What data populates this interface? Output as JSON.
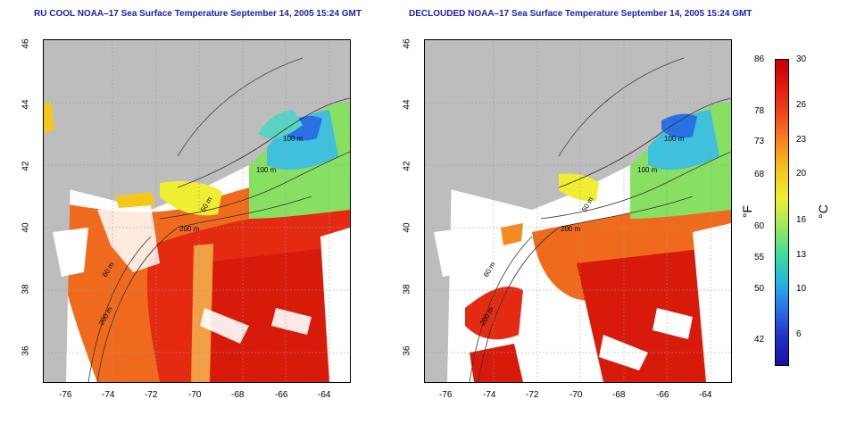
{
  "panels": [
    {
      "title": "RU COOL NOAA–17 Sea Surface Temperature September 14, 2005 15:24 GMT",
      "contour_labels": [
        "100 m",
        "100 m",
        "50 m",
        "200 m",
        "60 m",
        "200 m"
      ]
    },
    {
      "title": "DECLOUDED NOAA–17 Sea Surface Temperature September 14, 2005 15:24 GMT",
      "contour_labels": [
        "100 m",
        "100 m",
        "50 m",
        "200 m",
        "60 m",
        "200 m"
      ]
    }
  ],
  "x_ticks": [
    "-76",
    "-74",
    "-72",
    "-70",
    "-68",
    "-66",
    "-64"
  ],
  "y_ticks": [
    "46",
    "44",
    "42",
    "40",
    "38",
    "36"
  ],
  "colorbar": {
    "celsius_ticks": [
      "30",
      "26",
      "23",
      "20",
      "16",
      "13",
      "10",
      "6"
    ],
    "fahrenheit_ticks": [
      "86",
      "78",
      "73",
      "68",
      "60",
      "55",
      "50",
      "42"
    ],
    "celsius_unit": "°C",
    "fahrenheit_unit": "°F",
    "colors": [
      "#c80000",
      "#e11b10",
      "#f04a1c",
      "#f58a1f",
      "#f5c71c",
      "#f0ee33",
      "#9ce85a",
      "#3fdc9a",
      "#26b6e0",
      "#2a70e5",
      "#2030c8",
      "#1a10a0"
    ]
  },
  "colors": {
    "land": "#bdbdbd",
    "cloud": "#ffffff",
    "title": "#1b1bb3"
  }
}
